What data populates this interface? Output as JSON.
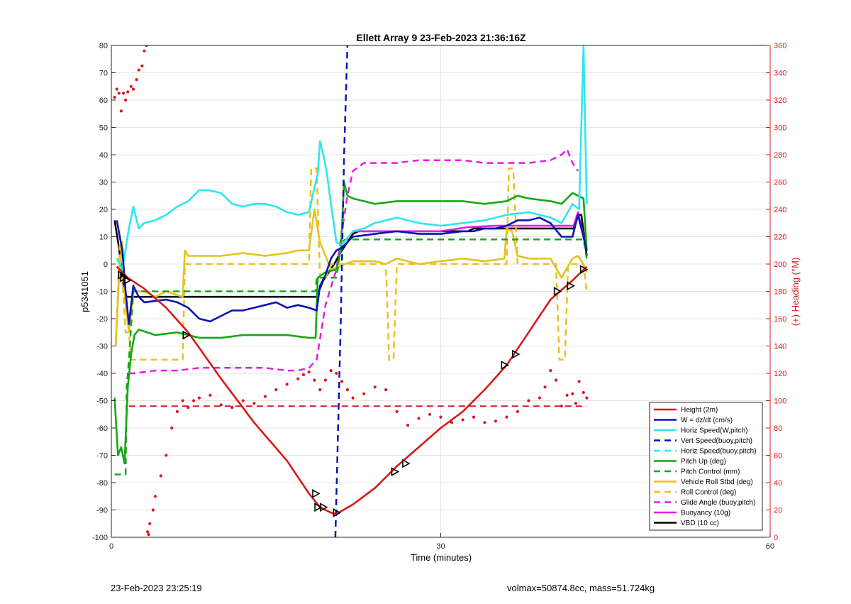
{
  "footer": {
    "timestamp": "23-Feb-2023 23:25:19",
    "vol_mass": "volmax=50874.8cc, mass=51.724kg"
  },
  "chart_data": {
    "type": "line",
    "title": "Ellett Array 9 23-Feb-2023 21:36:16Z",
    "xlabel": "Time (minutes)",
    "ylabel": "p5341051",
    "y2label": "(+) Heading (°M)",
    "xlim": [
      0,
      60
    ],
    "ylim": [
      -100,
      80
    ],
    "y2lim": [
      0,
      360
    ],
    "xticks": [
      0,
      30,
      60
    ],
    "yticks": [
      -100,
      -90,
      -80,
      -70,
      -60,
      -50,
      -40,
      -30,
      -20,
      -10,
      0,
      10,
      20,
      30,
      40,
      50,
      60,
      70,
      80
    ],
    "y2ticks": [
      0,
      20,
      40,
      60,
      80,
      100,
      120,
      140,
      160,
      180,
      200,
      220,
      240,
      260,
      280,
      300,
      320,
      340,
      360
    ],
    "grid": true,
    "legend_position": "bottom-right",
    "colors": {
      "red": "#d7191c",
      "blue": "#0a14b4",
      "cyan": "#2ee6ee",
      "green": "#15a815",
      "yellow": "#e6c21e",
      "magenta": "#e11ee6",
      "black": "#000000"
    },
    "series": [
      {
        "name": "Height (2m)",
        "color": "red",
        "style": "solid",
        "x": [
          0.5,
          1.5,
          3,
          5,
          7,
          10,
          13,
          16,
          18,
          19,
          20,
          20.5,
          22,
          24,
          26,
          28,
          30,
          32,
          34,
          36,
          38,
          40,
          42,
          43.3
        ],
        "y": [
          -1,
          -5,
          -9,
          -16,
          -25,
          -42,
          -58,
          -72,
          -84,
          -89,
          -91,
          -91.5,
          -88,
          -82,
          -74,
          -67,
          -60,
          -54,
          -46,
          -37,
          -25,
          -13,
          -6,
          -1
        ]
      },
      {
        "name": "W = dz/dt (cm/s)",
        "color": "blue",
        "style": "solid",
        "x": [
          0.5,
          1,
          1.3,
          1.6,
          2,
          2.5,
          3,
          5,
          6,
          7,
          8,
          9,
          10,
          11,
          12,
          13,
          14,
          15,
          16,
          17,
          18,
          18.7,
          19,
          19.5,
          20,
          20.5,
          21,
          22,
          24,
          26,
          28,
          30,
          32,
          33,
          34,
          35,
          36,
          37,
          38,
          39,
          40,
          41,
          42,
          42.5,
          43.3
        ],
        "y": [
          16,
          5,
          -10,
          -22,
          -8,
          -12,
          -14,
          -13,
          -14,
          -16,
          -20,
          -21,
          -19,
          -17,
          -17,
          -16,
          -15,
          -14,
          -16,
          -15,
          -16,
          -17,
          -8,
          -4,
          2,
          5,
          6,
          10,
          11,
          12,
          11,
          11,
          12,
          12,
          13,
          13,
          14,
          16,
          16,
          17,
          15,
          10,
          10,
          18,
          5
        ]
      },
      {
        "name": "Horiz Speed(W,pitch)",
        "color": "cyan",
        "style": "solid",
        "x": [
          0.5,
          1,
          1.6,
          2,
          2.5,
          3,
          4,
          5,
          6,
          7,
          8,
          8.8,
          10,
          11,
          12,
          13,
          14,
          15,
          16,
          17,
          18,
          18.5,
          18.8,
          19,
          19.3,
          19.6,
          20,
          20.5,
          21,
          22,
          23,
          24,
          26,
          28,
          30,
          32,
          34,
          36,
          38,
          40,
          41,
          42,
          42.6,
          43,
          43.3
        ],
        "y": [
          2,
          -2,
          13,
          21,
          13,
          15,
          16,
          18,
          21,
          23,
          27,
          27,
          26,
          22,
          21,
          22,
          22,
          21,
          19,
          18,
          19,
          28,
          33,
          45,
          40,
          34,
          22,
          8,
          7,
          12,
          13,
          15,
          17,
          15,
          14,
          15,
          16,
          18,
          19,
          17,
          15,
          22,
          20,
          80,
          22
        ]
      },
      {
        "name": "Vert Speed(buoy,pitch)",
        "color": "blue",
        "style": "dashed",
        "x": [
          20.4,
          20.9,
          21.2,
          21.5
        ],
        "y": [
          -100,
          -20,
          40,
          80
        ]
      },
      {
        "name": "Horiz Speed(buoy,pitch)",
        "color": "cyan",
        "style": "dashed",
        "x": [],
        "y": []
      },
      {
        "name": "Pitch Up (deg)",
        "color": "green",
        "style": "solid",
        "x": [
          0.3,
          0.6,
          0.9,
          1.2,
          1.5,
          1.8,
          2.1,
          2.5,
          4,
          6,
          8,
          10,
          12,
          14,
          16,
          18,
          18.6,
          18.8,
          19.5,
          20.5,
          20.9,
          21.2,
          21.5,
          22,
          24,
          26,
          28,
          30,
          32,
          34,
          36,
          37,
          38,
          40,
          41,
          42,
          43,
          43.3
        ],
        "y": [
          -49,
          -70,
          -67,
          -73,
          -45,
          -33,
          -26,
          -24,
          -26,
          -25,
          -27,
          -27,
          -26,
          -26,
          -26,
          -27,
          -27,
          -5,
          -3,
          -2,
          5,
          30,
          25,
          24,
          22,
          23,
          23,
          23,
          23,
          22,
          23,
          25,
          24,
          23,
          22,
          26,
          24,
          5
        ]
      },
      {
        "name": "Pitch Control (mm)",
        "color": "green",
        "style": "dashed",
        "x": [
          0.3,
          1.3,
          1.4,
          1.6,
          2,
          4,
          8,
          12,
          16,
          18.6,
          18.7,
          20.5,
          21,
          21.3,
          25,
          30,
          35,
          40,
          43,
          43.3
        ],
        "y": [
          -77,
          -77,
          -45,
          -35,
          -10,
          -10,
          -10,
          -10,
          -10,
          -10,
          -5,
          -5,
          8,
          9,
          9,
          9,
          9,
          9,
          9,
          2
        ]
      },
      {
        "name": "Vehicle Roll Stbd (deg)",
        "color": "yellow",
        "style": "solid",
        "x": [
          0.4,
          0.7,
          1.0,
          1.3,
          1.6,
          2,
          3,
          4,
          5,
          6.5,
          6.7,
          7,
          10,
          12,
          14,
          16,
          17,
          18,
          18.5,
          19,
          20,
          22,
          24,
          25,
          26,
          27,
          28,
          30,
          32,
          34,
          35.8,
          36,
          36.5,
          37,
          38,
          40,
          41,
          42,
          42.5,
          43,
          43.3
        ],
        "y": [
          -30,
          -5,
          8,
          -15,
          -25,
          -10,
          -10,
          -12,
          -10,
          -12,
          5,
          3,
          3,
          4,
          3,
          4,
          5,
          5,
          20,
          8,
          -2,
          1,
          1,
          0,
          2,
          1,
          0,
          1,
          2,
          1,
          2,
          13,
          12,
          3,
          2,
          2,
          -5,
          2,
          3,
          0,
          -3
        ]
      },
      {
        "name": "Roll Control (deg)",
        "color": "yellow",
        "style": "dashed",
        "x": [
          0.4,
          0.8,
          1.0,
          1.3,
          1.6,
          1.8,
          2,
          6.5,
          6.7,
          18,
          18.2,
          18.7,
          19,
          19.5,
          20,
          25,
          25.3,
          25.7,
          26,
          30,
          36,
          36.2,
          36.6,
          37,
          40.5,
          40.8,
          41.3,
          41.6,
          43,
          43.3
        ],
        "y": [
          -30,
          10,
          -5,
          -25,
          -25,
          -35,
          -35,
          -35,
          0,
          0,
          35,
          35,
          -5,
          -5,
          0,
          0,
          -35,
          -35,
          0,
          0,
          0,
          35,
          35,
          0,
          0,
          -35,
          -35,
          0,
          0,
          -10
        ]
      },
      {
        "name": "Glide Angle (buoy,pitch)",
        "color": "magenta",
        "style": "dashed",
        "x": [
          1.6,
          2,
          4,
          6,
          8,
          10,
          12,
          14,
          16,
          17,
          18,
          18.7,
          19.5,
          20.5,
          21,
          21.5,
          22,
          23,
          24,
          26,
          28,
          30,
          32,
          34,
          36,
          38,
          40,
          41,
          41.5,
          42,
          42.5
        ],
        "y": [
          -40,
          -40,
          -39,
          -39,
          -38,
          -38,
          -38,
          -38,
          -39,
          -39,
          -38,
          -35,
          -15,
          -2,
          12,
          25,
          34,
          37,
          37,
          37,
          38,
          38,
          38,
          37,
          37,
          37,
          38,
          40,
          42,
          37,
          34
        ]
      },
      {
        "name": "Buoyancy (10g)",
        "color": "magenta",
        "style": "solid",
        "x": [
          22,
          25,
          30,
          32.5,
          35,
          40,
          42.1,
          42.5,
          43.3
        ],
        "y": [
          12,
          12,
          12,
          13.5,
          14,
          14,
          14,
          19,
          5
        ]
      },
      {
        "name": "VBD (10 cc)",
        "color": "black",
        "style": "solid",
        "x": [
          0.3,
          0.7,
          1.0,
          1.2,
          1.4,
          1.6,
          3,
          6,
          10,
          14,
          18,
          18.7,
          19.3,
          20.3,
          21,
          22,
          22.5,
          30,
          32.5,
          33,
          40,
          42.1,
          42.5,
          42.8,
          43.3
        ],
        "y": [
          16,
          6,
          -5,
          -10,
          -12,
          -12,
          -12,
          -12,
          -12,
          -12,
          -12,
          -12,
          -6,
          0,
          5,
          11,
          12,
          12,
          12,
          13,
          13,
          13,
          18,
          18,
          3
        ]
      }
    ],
    "height_markers": {
      "x": [
        0.9,
        1.1,
        1.4,
        6.8,
        18.6,
        18.8,
        19.3,
        20.5,
        25.8,
        26.8,
        35.8,
        36.8,
        40.6,
        41.8,
        43.0
      ],
      "y": [
        -4,
        -5,
        -6,
        -26,
        -84,
        -89,
        -89,
        -91,
        -76,
        -73,
        -37,
        -33,
        -10,
        -8,
        -2
      ]
    },
    "heading_points": {
      "color": "red",
      "axis": "right",
      "x": [
        0.3,
        0.5,
        0.7,
        0.9,
        1.1,
        1.3,
        1.5,
        1.8,
        2.0,
        2.3,
        2.5,
        2.8,
        3.0,
        3.2,
        3.4,
        3.3,
        3.5,
        3.8,
        4.0,
        4.5,
        5.0,
        5.5,
        6.0,
        6.5,
        7.0,
        7.5,
        8.0,
        9,
        10,
        11,
        12,
        13,
        14,
        15,
        16,
        17,
        17.5,
        18,
        18.5,
        19,
        19.5,
        20,
        20.5,
        21,
        21.5,
        22,
        23,
        24,
        25,
        26,
        27,
        28,
        29,
        30,
        31,
        32,
        33,
        34,
        35,
        36,
        37,
        38,
        39,
        39.5,
        40,
        40.5,
        41,
        41.5,
        42,
        42.3,
        42.6,
        43.0,
        43.3
      ],
      "y": [
        322,
        328,
        325,
        312,
        325,
        320,
        326,
        330,
        328,
        335,
        342,
        345,
        356,
        360,
        2,
        4,
        10,
        20,
        30,
        45,
        60,
        80,
        92,
        100,
        95,
        100,
        102,
        104,
        97,
        95,
        100,
        98,
        103,
        108,
        112,
        116,
        119,
        121,
        115,
        108,
        115,
        122,
        120,
        114,
        108,
        102,
        105,
        110,
        108,
        92,
        82,
        87,
        90,
        88,
        84,
        86,
        88,
        84,
        85,
        88,
        92,
        100,
        102,
        110,
        122,
        115,
        96,
        104,
        105,
        98,
        114,
        106,
        102
      ]
    },
    "heading_control": {
      "color": "red",
      "style": "dashed",
      "axis": "right",
      "x": [
        1.6,
        43.3
      ],
      "y": [
        96,
        96
      ]
    }
  }
}
